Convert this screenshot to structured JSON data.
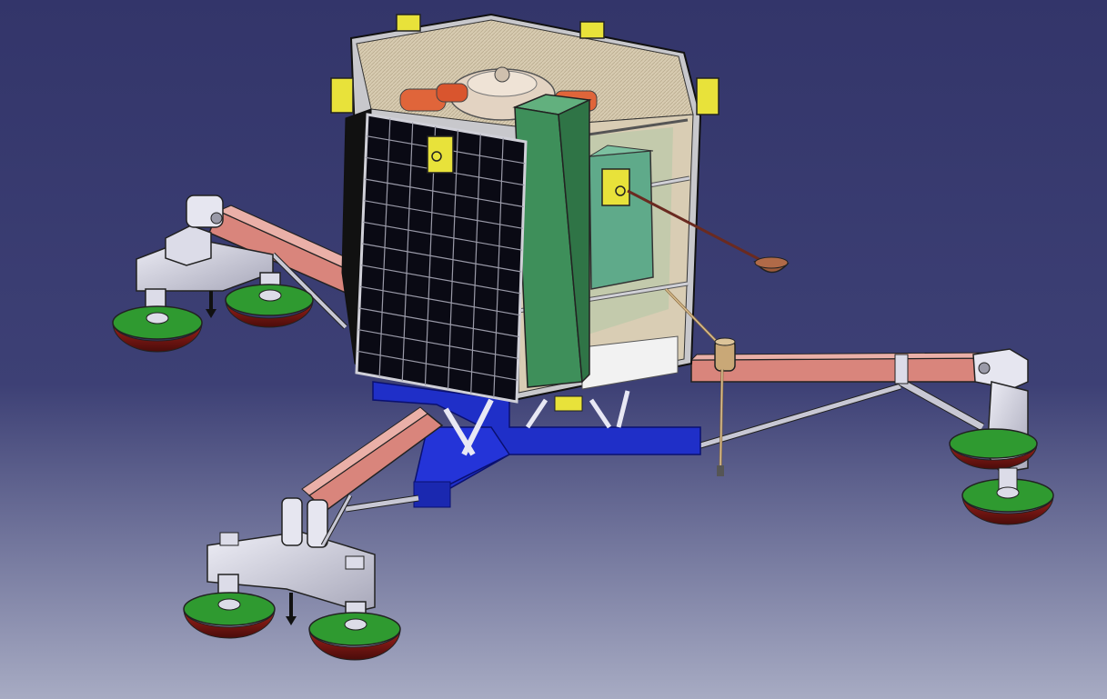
{
  "viewport": {
    "background_top_color": "#33356a",
    "background_bottom_color": "#a7abc3"
  },
  "model": {
    "colors": {
      "solar_panel": "#0a0a14",
      "solar_grid_line": "#9a9aa8",
      "body_frame": "#c8c8cc",
      "body_interior": "#d9cdb4",
      "green_box": "#3e8f5a",
      "teal_box": "#5faa8a",
      "yellow_bracket": "#e8e23a",
      "blue_base": "#1f2fc8",
      "salmon_leg": "#d9857c",
      "gray_part": "#c9c9d6",
      "pad_green": "#2f9a30",
      "pad_red": "#7a1a16",
      "brown_part": "#9c5a3a",
      "tan_part": "#c9a877"
    },
    "parts": [
      "solar-panel",
      "lander-body",
      "top-tank",
      "green-instrument-box",
      "teal-instrument-box",
      "yellow-bracket",
      "blue-base-frame",
      "leg-left",
      "leg-front",
      "leg-right",
      "foot-pad",
      "sampling-arm",
      "drill-rod"
    ]
  }
}
